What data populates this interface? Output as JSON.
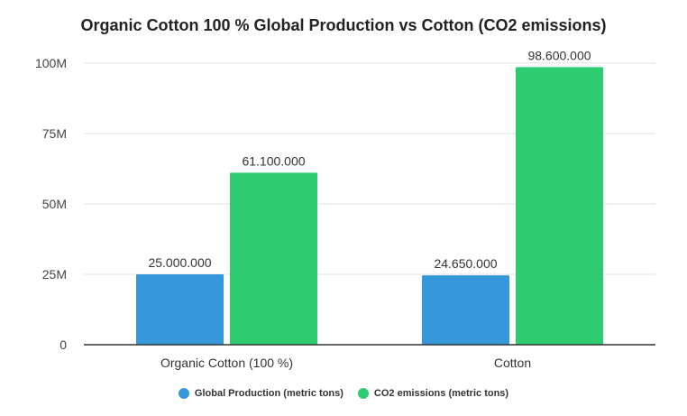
{
  "chart_data": {
    "type": "bar",
    "title": "Organic Cotton 100 % Global Production vs Cotton (CO2 emissions)",
    "categories": [
      "Organic Cotton (100 %)",
      "Cotton"
    ],
    "series": [
      {
        "name": "Global Production (metric tons)",
        "values": [
          25000000,
          24650000
        ],
        "labels": [
          "25.000.000",
          "24.650.000"
        ],
        "color": "#3498db"
      },
      {
        "name": "CO2 emissions (metric tons)",
        "values": [
          61100000,
          98600000
        ],
        "labels": [
          "61.100.000",
          "98.600.000"
        ],
        "color": "#2ecc71"
      }
    ],
    "ylim": [
      0,
      100000000
    ],
    "yticks": [
      0,
      25000000,
      50000000,
      75000000,
      100000000
    ],
    "ytick_labels": [
      "0",
      "25M",
      "50M",
      "75M",
      "100M"
    ],
    "grid": true,
    "legend_position": "bottom"
  }
}
